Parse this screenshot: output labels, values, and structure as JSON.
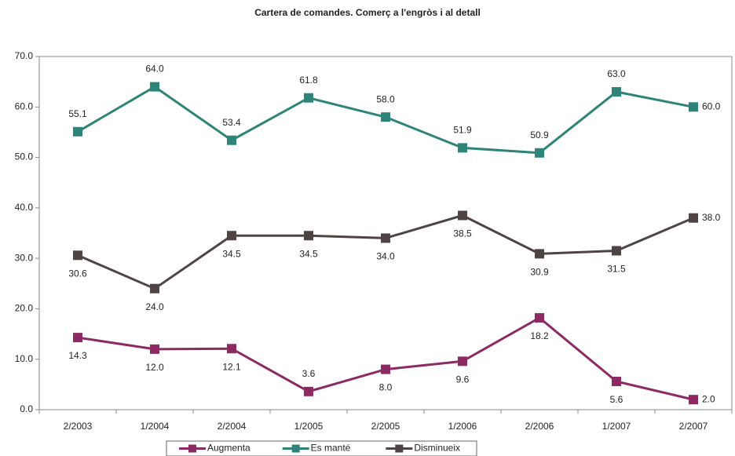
{
  "chart_data": {
    "type": "line",
    "title": "Cartera de comandes. Comerç a l'engròs i al detall",
    "categories": [
      "2/2003",
      "1/2004",
      "2/2004",
      "1/2005",
      "2/2005",
      "1/2006",
      "2/2006",
      "1/2007",
      "2/2007"
    ],
    "series": [
      {
        "name": "Augmenta",
        "color": "#8e2a63",
        "values": [
          14.3,
          12.0,
          12.1,
          3.6,
          8.0,
          9.6,
          18.2,
          5.6,
          2.0
        ],
        "value_labels": [
          "14.3",
          "12.0",
          "12.1",
          "3.6",
          "8.0",
          "9.6",
          "18.2",
          "5.6",
          "2.0"
        ]
      },
      {
        "name": "Es manté",
        "color": "#2f8479",
        "values": [
          55.1,
          64.0,
          53.4,
          61.8,
          58.0,
          51.9,
          50.9,
          63.0,
          60.0
        ],
        "value_labels": [
          "55.1",
          "64.0",
          "53.4",
          "61.8",
          "58.0",
          "51.9",
          "50.9",
          "63.0",
          "60.0"
        ]
      },
      {
        "name": "Disminueix",
        "color": "#4e4441",
        "values": [
          30.6,
          24.0,
          34.5,
          34.5,
          34.0,
          38.5,
          30.9,
          31.5,
          38.0
        ],
        "value_labels": [
          "30.6",
          "24.0",
          "34.5",
          "34.5",
          "34.0",
          "38.5",
          "30.9",
          "31.5",
          "38.0"
        ]
      }
    ],
    "ylim": [
      0,
      70
    ],
    "yticks": [
      {
        "value": 0,
        "label": "0.0"
      },
      {
        "value": 10,
        "label": "10.0"
      },
      {
        "value": 20,
        "label": "20.0"
      },
      {
        "value": 30,
        "label": "30.0"
      },
      {
        "value": 40,
        "label": "40.0"
      },
      {
        "value": 50,
        "label": "50.0"
      },
      {
        "value": 60,
        "label": "60.0"
      },
      {
        "value": 70,
        "label": "70.0"
      }
    ],
    "grid": false,
    "legend": "bottom"
  }
}
